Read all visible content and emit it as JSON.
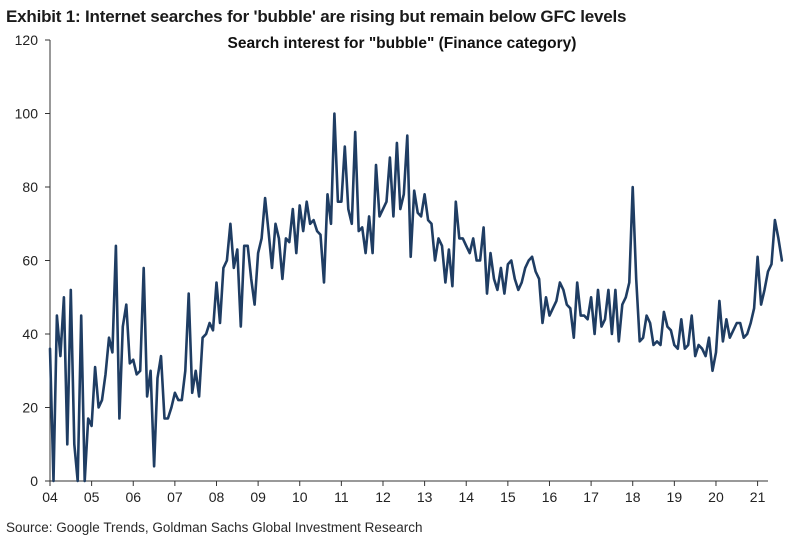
{
  "exhibit_title": "Exhibit 1: Internet searches for 'bubble' are rising but remain below GFC levels",
  "source": "Source: Google Trends, Goldman Sachs Global Investment Research",
  "colors": {
    "line": "#1f3d63",
    "axis": "#333333",
    "text": "#1b1b1b"
  },
  "chart_data": {
    "type": "line",
    "title": "Search interest for \"bubble\" (Finance category)",
    "xlabel": "",
    "ylabel": "",
    "ylim": [
      0,
      120
    ],
    "yticks": [
      0,
      20,
      40,
      60,
      80,
      100,
      120
    ],
    "xlim": [
      2004.0,
      2021.25
    ],
    "xtick_values": [
      2004,
      2005,
      2006,
      2007,
      2008,
      2009,
      2010,
      2011,
      2012,
      2013,
      2014,
      2015,
      2016,
      2017,
      2018,
      2019,
      2020,
      2021
    ],
    "xtick_labels": [
      "04",
      "05",
      "06",
      "07",
      "08",
      "09",
      "10",
      "11",
      "12",
      "13",
      "14",
      "15",
      "16",
      "17",
      "18",
      "19",
      "20",
      "21"
    ],
    "grid": false,
    "legend": "none",
    "series": [
      {
        "name": "Search interest for \"bubble\"",
        "x_start": 2004.0,
        "x_step": 0.083333,
        "values": [
          36,
          0,
          45,
          34,
          50,
          10,
          52,
          10,
          0,
          45,
          0,
          17,
          15,
          31,
          20,
          22,
          29,
          39,
          35,
          64,
          17,
          42,
          48,
          32,
          33,
          29,
          30,
          58,
          23,
          30,
          4,
          28,
          34,
          17,
          17,
          20,
          24,
          22,
          22,
          30,
          51,
          24,
          30,
          23,
          39,
          40,
          43,
          41,
          54,
          43,
          58,
          60,
          70,
          58,
          63,
          42,
          64,
          64,
          55,
          48,
          62,
          66,
          77,
          68,
          58,
          70,
          66,
          55,
          66,
          65,
          74,
          62,
          75,
          68,
          76,
          70,
          71,
          68,
          67,
          54,
          78,
          70,
          100,
          76,
          76,
          91,
          74,
          70,
          95,
          68,
          69,
          62,
          72,
          62,
          86,
          72,
          74,
          76,
          88,
          72,
          92,
          74,
          78,
          94,
          61,
          79,
          73,
          72,
          78,
          71,
          70,
          60,
          66,
          64,
          54,
          63,
          53,
          76,
          66,
          66,
          64,
          62,
          66,
          60,
          60,
          69,
          51,
          62,
          55,
          52,
          58,
          51,
          59,
          60,
          55,
          52,
          54,
          58,
          60,
          61,
          57,
          55,
          43,
          50,
          45,
          47,
          49,
          54,
          52,
          48,
          47,
          39,
          54,
          45,
          45,
          44,
          50,
          40,
          52,
          42,
          44,
          52,
          40,
          52,
          38,
          48,
          50,
          54,
          80,
          55,
          38,
          39,
          45,
          43,
          37,
          38,
          37,
          46,
          42,
          41,
          37,
          36,
          44,
          36,
          37,
          45,
          34,
          37,
          36,
          34,
          39,
          30,
          35,
          49,
          38,
          44,
          39,
          41,
          43,
          43,
          39,
          40,
          43,
          47,
          61,
          48,
          52,
          57,
          59,
          71,
          66,
          60
        ]
      }
    ]
  }
}
